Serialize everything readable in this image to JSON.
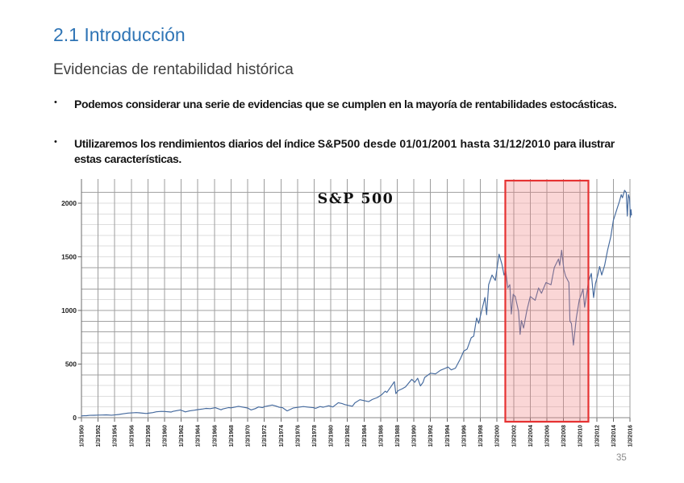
{
  "slide": {
    "title": "2.1 Introducción",
    "subtitle": "Evidencias de rentabilidad histórica",
    "bullet_glyph": "•",
    "bullets": [
      {
        "parts": [
          {
            "text": "Podemos considerar una serie de evidencias que se cumplen en la mayoría de rentabilidades estocásticas."
          }
        ]
      },
      {
        "parts": [
          {
            "text": "Utilizaremos los rendimientos diarios del índice "
          },
          {
            "text": "S&P500 desde 01/01/2001 hasta 31/12/2010"
          },
          {
            "text": " para ilustrar estas características."
          }
        ]
      }
    ],
    "page_number": "35"
  },
  "chart_data": {
    "type": "line",
    "title": "S&P 500",
    "xlabel": "",
    "ylabel": "",
    "grid": "both",
    "x_axis": {
      "start_year": 1950,
      "end_year": 2016,
      "tick_step_years": 2,
      "tick_labels": [
        "1/3/1950",
        "1/3/1952",
        "1/3/1954",
        "1/3/1956",
        "1/3/1958",
        "1/3/1960",
        "1/3/1962",
        "1/3/1964",
        "1/3/1966",
        "1/3/1968",
        "1/3/1970",
        "1/3/1972",
        "1/3/1974",
        "1/3/1976",
        "1/3/1978",
        "1/3/1980",
        "1/3/1982",
        "1/3/1984",
        "1/3/1986",
        "1/3/1988",
        "1/3/1990",
        "1/3/1992",
        "1/3/1994",
        "1/3/1996",
        "1/3/1998",
        "1/3/2000",
        "1/3/2002",
        "1/3/2004",
        "1/3/2006",
        "1/3/2008",
        "1/3/2010",
        "1/3/2012",
        "1/3/2014",
        "1/3/2016"
      ]
    },
    "y_axis": {
      "ticks": [
        0,
        500,
        1000,
        1500,
        2000
      ],
      "ylim": [
        0,
        2225
      ]
    },
    "highlight": {
      "label_from": "01/01/2001",
      "label_to": "31/12/2010",
      "x_start": 2001.0,
      "x_end": 2011.0,
      "fill": "#f08080",
      "border": "#e63232"
    },
    "series": [
      {
        "name": "S&P 500",
        "color": "#44699d",
        "points": [
          [
            1950.0,
            16.9
          ],
          [
            1950.3,
            18
          ],
          [
            1950.6,
            18.5
          ],
          [
            1951,
            21.5
          ],
          [
            1951.5,
            22.5
          ],
          [
            1952,
            24
          ],
          [
            1952.5,
            24.8
          ],
          [
            1953,
            26.1
          ],
          [
            1953.6,
            23.5
          ],
          [
            1954,
            25.5
          ],
          [
            1954.5,
            30
          ],
          [
            1955,
            36
          ],
          [
            1955.6,
            42.5
          ],
          [
            1956,
            44.5
          ],
          [
            1956.6,
            47.5
          ],
          [
            1957,
            45
          ],
          [
            1957.8,
            39
          ],
          [
            1958,
            41.5
          ],
          [
            1958.6,
            47.5
          ],
          [
            1959,
            55
          ],
          [
            1959.6,
            58.5
          ],
          [
            1960,
            58
          ],
          [
            1960.8,
            53
          ],
          [
            1961,
            59
          ],
          [
            1961.9,
            72
          ],
          [
            1962.5,
            54
          ],
          [
            1963,
            63.5
          ],
          [
            1963.6,
            70
          ],
          [
            1964,
            75.5
          ],
          [
            1964.6,
            81.5
          ],
          [
            1965,
            86.5
          ],
          [
            1965.5,
            84
          ],
          [
            1966.1,
            93
          ],
          [
            1966.8,
            74
          ],
          [
            1967,
            81
          ],
          [
            1967.7,
            94
          ],
          [
            1968,
            92
          ],
          [
            1968.9,
            106
          ],
          [
            1969.5,
            97
          ],
          [
            1970,
            90
          ],
          [
            1970.4,
            72
          ],
          [
            1970.9,
            84
          ],
          [
            1971.3,
            100
          ],
          [
            1971.8,
            94
          ],
          [
            1972,
            103
          ],
          [
            1972.95,
            118
          ],
          [
            1973.4,
            108
          ],
          [
            1973.8,
            97
          ],
          [
            1974.2,
            93
          ],
          [
            1974.75,
            63
          ],
          [
            1975.1,
            76
          ],
          [
            1975.5,
            91
          ],
          [
            1976,
            96
          ],
          [
            1976.7,
            104
          ],
          [
            1977.1,
            100
          ],
          [
            1977.9,
            93
          ],
          [
            1978.2,
            87
          ],
          [
            1978.7,
            104
          ],
          [
            1979.1,
            98
          ],
          [
            1979.75,
            111
          ],
          [
            1980.25,
            100
          ],
          [
            1980.9,
            140
          ],
          [
            1981.4,
            131
          ],
          [
            1981.7,
            122
          ],
          [
            1982.6,
            107
          ],
          [
            1982.9,
            138
          ],
          [
            1983.5,
            168
          ],
          [
            1984.1,
            157
          ],
          [
            1984.55,
            150
          ],
          [
            1985,
            170
          ],
          [
            1985.6,
            188
          ],
          [
            1986.1,
            212
          ],
          [
            1986.55,
            247
          ],
          [
            1986.75,
            235
          ],
          [
            1987.2,
            285
          ],
          [
            1987.65,
            336
          ],
          [
            1987.83,
            224
          ],
          [
            1988.1,
            252
          ],
          [
            1988.6,
            270
          ],
          [
            1989,
            288
          ],
          [
            1989.75,
            358
          ],
          [
            1990.1,
            330
          ],
          [
            1990.45,
            368
          ],
          [
            1990.78,
            296
          ],
          [
            1991.1,
            330
          ],
          [
            1991.3,
            375
          ],
          [
            1992,
            415
          ],
          [
            1992.6,
            408
          ],
          [
            1993.2,
            442
          ],
          [
            1993.8,
            462
          ],
          [
            1994.1,
            472
          ],
          [
            1994.5,
            446
          ],
          [
            1995,
            462
          ],
          [
            1995.6,
            550
          ],
          [
            1996,
            620
          ],
          [
            1996.4,
            640
          ],
          [
            1996.9,
            745
          ],
          [
            1997.2,
            760
          ],
          [
            1997.55,
            930
          ],
          [
            1997.8,
            880
          ],
          [
            1998.1,
            980
          ],
          [
            1998.55,
            1120
          ],
          [
            1998.75,
            960
          ],
          [
            1999,
            1240
          ],
          [
            1999.4,
            1330
          ],
          [
            1999.8,
            1280
          ],
          [
            2000.25,
            1525
          ],
          [
            2000.6,
            1430
          ],
          [
            2000.85,
            1330
          ],
          [
            2001.05,
            1370
          ],
          [
            2001.3,
            1210
          ],
          [
            2001.55,
            1240
          ],
          [
            2001.72,
            966
          ],
          [
            2001.95,
            1150
          ],
          [
            2002.2,
            1130
          ],
          [
            2002.6,
            990
          ],
          [
            2002.78,
            777
          ],
          [
            2002.95,
            905
          ],
          [
            2003.2,
            835
          ],
          [
            2003.6,
            1000
          ],
          [
            2004,
            1130
          ],
          [
            2004.6,
            1095
          ],
          [
            2005,
            1210
          ],
          [
            2005.35,
            1160
          ],
          [
            2005.9,
            1260
          ],
          [
            2006.5,
            1240
          ],
          [
            2006.9,
            1400
          ],
          [
            2007.4,
            1480
          ],
          [
            2007.55,
            1420
          ],
          [
            2007.78,
            1562
          ],
          [
            2008.05,
            1380
          ],
          [
            2008.25,
            1320
          ],
          [
            2008.65,
            1260
          ],
          [
            2008.78,
            900
          ],
          [
            2008.95,
            880
          ],
          [
            2009.2,
            677
          ],
          [
            2009.55,
            930
          ],
          [
            2009.9,
            1100
          ],
          [
            2010.1,
            1140
          ],
          [
            2010.35,
            1200
          ],
          [
            2010.55,
            1030
          ],
          [
            2010.85,
            1180
          ],
          [
            2011.0,
            1270
          ],
          [
            2011.35,
            1345
          ],
          [
            2011.62,
            1120
          ],
          [
            2011.85,
            1250
          ],
          [
            2012.1,
            1320
          ],
          [
            2012.35,
            1410
          ],
          [
            2012.6,
            1330
          ],
          [
            2012.95,
            1420
          ],
          [
            2013.3,
            1560
          ],
          [
            2013.7,
            1690
          ],
          [
            2014,
            1840
          ],
          [
            2014.5,
            1960
          ],
          [
            2014.75,
            2020
          ],
          [
            2014.95,
            2080
          ],
          [
            2015.1,
            2050
          ],
          [
            2015.35,
            2120
          ],
          [
            2015.55,
            2100
          ],
          [
            2015.68,
            1880
          ],
          [
            2015.82,
            2080
          ],
          [
            2015.95,
            2045
          ],
          [
            2016.05,
            1870
          ],
          [
            2016.13,
            1940
          ],
          [
            2016.18,
            1890
          ]
        ]
      }
    ]
  }
}
